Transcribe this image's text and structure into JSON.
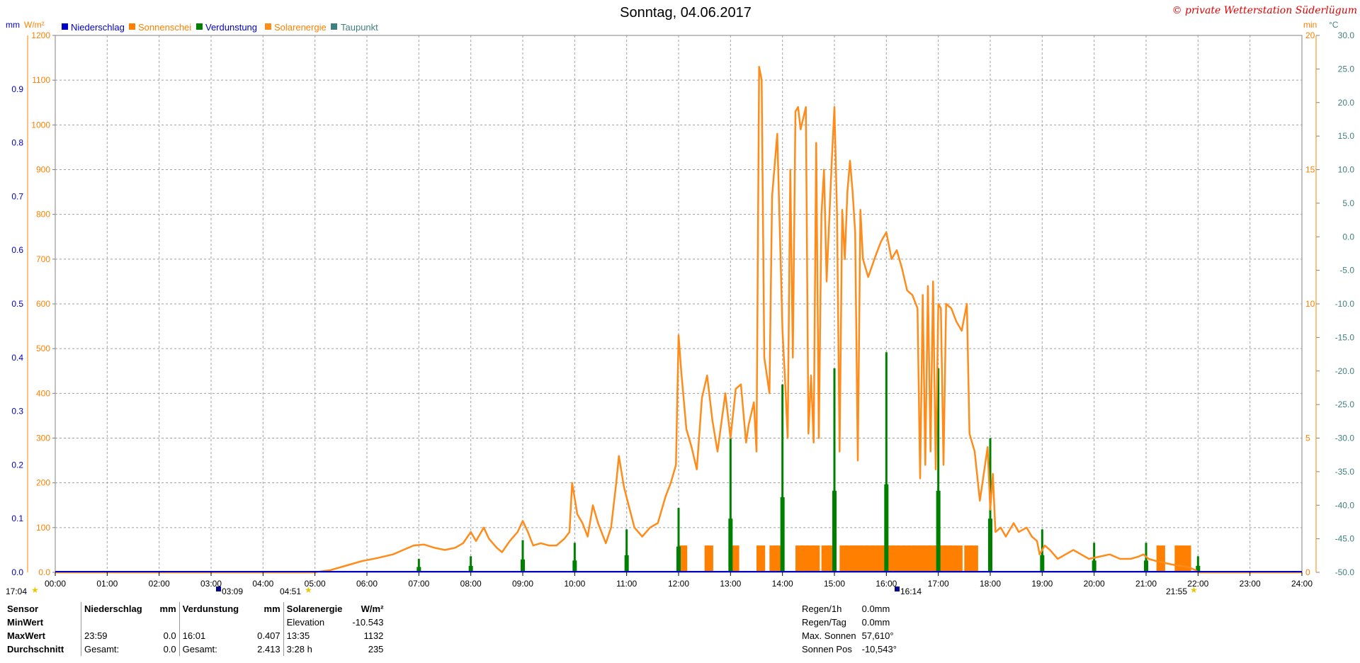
{
  "title": "Sonntag, 04.06.2017",
  "copyright": "© private Wetterstation Süderlügum",
  "legend": [
    {
      "label": "Niederschlag",
      "color": "#0000c8"
    },
    {
      "label": "Sonnenschei",
      "color": "#ff8000"
    },
    {
      "label": "Verdunstung",
      "color": "#008000"
    },
    {
      "label": "Solarenergie",
      "color": "#ff8c1a"
    },
    {
      "label": "Taupunkt",
      "color": "#408080"
    }
  ],
  "axis_headers": {
    "left_mm": "mm",
    "left_wm2": "W/m²",
    "right_min": "min",
    "right_c": "°C"
  },
  "markers": {
    "moonrise_left": "17:04",
    "sunrise_marker": "03:09",
    "sunrise_time": "04:51",
    "moonset_marker": "16:14",
    "sunset_time": "21:55"
  },
  "stats": {
    "headers": {
      "sensor": "Sensor",
      "niederschlag": "Niederschlag",
      "mm": "mm",
      "verdunstung": "Verdunstung",
      "mm2": "mm",
      "solar": "Solarenergie",
      "wm2": "W/m²"
    },
    "rows": [
      {
        "label": "MinWert",
        "c1": "",
        "c2": "",
        "c3": "",
        "c4": "",
        "c5": "Elevation",
        "c6": "-10.543"
      },
      {
        "label": "MaxWert",
        "c1": "23:59",
        "c2": "0.0",
        "c3": "16:01",
        "c4": "0.407",
        "c5": "13:35",
        "c6": "1132"
      },
      {
        "label": "Durchschnitt",
        "c1": "Gesamt:",
        "c2": "0.0",
        "c3": "Gesamt:",
        "c4": "2.413",
        "c5": "3:28 h",
        "c6": "235"
      }
    ],
    "right": [
      {
        "label": "Regen/1h",
        "value": "0.0mm"
      },
      {
        "label": "Regen/Tag",
        "value": "0.0mm"
      },
      {
        "label": "Max. Sonnen",
        "value": "57,610°"
      },
      {
        "label": "Sonnen Pos",
        "value": "-10,543°"
      }
    ]
  },
  "chart_data": {
    "type": "line",
    "x_axis": {
      "label": "",
      "min": 0,
      "max": 24,
      "ticks": [
        "00:00",
        "01:00",
        "02:00",
        "03:00",
        "04:00",
        "05:00",
        "06:00",
        "07:00",
        "08:00",
        "09:00",
        "10:00",
        "11:00",
        "12:00",
        "13:00",
        "14:00",
        "15:00",
        "16:00",
        "17:00",
        "18:00",
        "19:00",
        "20:00",
        "21:00",
        "22:00",
        "23:00",
        "24:00"
      ]
    },
    "axes": {
      "mm": {
        "min": 0,
        "max": 1.0,
        "ticks": [
          "0.0",
          "0.1",
          "0.2",
          "0.3",
          "0.4",
          "0.5",
          "0.6",
          "0.7",
          "0.8",
          "0.9"
        ],
        "color": "#0000c8"
      },
      "wm2": {
        "min": 0,
        "max": 1200,
        "ticks": [
          "0.0",
          "100",
          "200",
          "300",
          "400",
          "500",
          "600",
          "700",
          "800",
          "900",
          "1000",
          "1100",
          "1200"
        ],
        "color": "#ff8000"
      },
      "min": {
        "min": 0,
        "max": 20,
        "ticks": [
          "0",
          "5",
          "10",
          "15",
          "20"
        ],
        "color": "#ff8000"
      },
      "celsius": {
        "min": -50,
        "max": 30,
        "ticks": [
          "-50.0",
          "-45.0",
          "-40.0",
          "-35.0",
          "-30.0",
          "-25.0",
          "-20.0",
          "-15.0",
          "-10.0",
          "-5.0",
          "0.0",
          "5.0",
          "10.0",
          "15.0",
          "20.0",
          "25.0",
          "30.0"
        ],
        "color": "#408080"
      }
    },
    "grid": true,
    "series": [
      {
        "name": "Solarenergie",
        "axis": "wm2",
        "color": "#ff8c1a",
        "points": [
          [
            0,
            0
          ],
          [
            5.0,
            0
          ],
          [
            5.3,
            5
          ],
          [
            5.6,
            15
          ],
          [
            5.9,
            25
          ],
          [
            6.2,
            32
          ],
          [
            6.5,
            40
          ],
          [
            6.7,
            50
          ],
          [
            6.9,
            60
          ],
          [
            7.1,
            62
          ],
          [
            7.3,
            55
          ],
          [
            7.5,
            50
          ],
          [
            7.7,
            55
          ],
          [
            7.85,
            65
          ],
          [
            8.0,
            90
          ],
          [
            8.1,
            70
          ],
          [
            8.25,
            100
          ],
          [
            8.35,
            75
          ],
          [
            8.5,
            55
          ],
          [
            8.6,
            45
          ],
          [
            8.75,
            70
          ],
          [
            8.9,
            90
          ],
          [
            9.0,
            115
          ],
          [
            9.1,
            90
          ],
          [
            9.2,
            60
          ],
          [
            9.35,
            65
          ],
          [
            9.5,
            60
          ],
          [
            9.65,
            60
          ],
          [
            9.8,
            75
          ],
          [
            9.9,
            90
          ],
          [
            9.95,
            200
          ],
          [
            10.05,
            130
          ],
          [
            10.15,
            110
          ],
          [
            10.25,
            80
          ],
          [
            10.35,
            150
          ],
          [
            10.45,
            110
          ],
          [
            10.6,
            65
          ],
          [
            10.7,
            100
          ],
          [
            10.8,
            200
          ],
          [
            10.85,
            260
          ],
          [
            10.95,
            190
          ],
          [
            11.05,
            145
          ],
          [
            11.15,
            100
          ],
          [
            11.3,
            80
          ],
          [
            11.45,
            100
          ],
          [
            11.6,
            110
          ],
          [
            11.75,
            170
          ],
          [
            11.85,
            200
          ],
          [
            11.95,
            240
          ],
          [
            12.0,
            530
          ],
          [
            12.05,
            450
          ],
          [
            12.15,
            320
          ],
          [
            12.25,
            280
          ],
          [
            12.35,
            230
          ],
          [
            12.45,
            390
          ],
          [
            12.55,
            440
          ],
          [
            12.65,
            340
          ],
          [
            12.75,
            270
          ],
          [
            12.9,
            400
          ],
          [
            13.0,
            300
          ],
          [
            13.1,
            410
          ],
          [
            13.2,
            420
          ],
          [
            13.3,
            290
          ],
          [
            13.35,
            330
          ],
          [
            13.45,
            380
          ],
          [
            13.5,
            270
          ],
          [
            13.55,
            1130
          ],
          [
            13.6,
            1100
          ],
          [
            13.65,
            480
          ],
          [
            13.75,
            400
          ],
          [
            13.8,
            840
          ],
          [
            13.9,
            980
          ],
          [
            14.0,
            540
          ],
          [
            14.05,
            430
          ],
          [
            14.1,
            300
          ],
          [
            14.15,
            900
          ],
          [
            14.2,
            480
          ],
          [
            14.25,
            1030
          ],
          [
            14.3,
            1040
          ],
          [
            14.35,
            990
          ],
          [
            14.45,
            1040
          ],
          [
            14.5,
            310
          ],
          [
            14.55,
            440
          ],
          [
            14.6,
            290
          ],
          [
            14.65,
            960
          ],
          [
            14.7,
            300
          ],
          [
            14.75,
            800
          ],
          [
            14.8,
            900
          ],
          [
            14.85,
            650
          ],
          [
            14.95,
            920
          ],
          [
            15.0,
            1040
          ],
          [
            15.05,
            800
          ],
          [
            15.1,
            270
          ],
          [
            15.15,
            810
          ],
          [
            15.2,
            700
          ],
          [
            15.25,
            850
          ],
          [
            15.3,
            920
          ],
          [
            15.35,
            850
          ],
          [
            15.4,
            760
          ],
          [
            15.45,
            250
          ],
          [
            15.5,
            810
          ],
          [
            15.55,
            700
          ],
          [
            15.65,
            660
          ],
          [
            15.8,
            710
          ],
          [
            15.9,
            740
          ],
          [
            16.0,
            760
          ],
          [
            16.1,
            700
          ],
          [
            16.2,
            720
          ],
          [
            16.3,
            680
          ],
          [
            16.4,
            630
          ],
          [
            16.5,
            620
          ],
          [
            16.6,
            590
          ],
          [
            16.65,
            210
          ],
          [
            16.7,
            620
          ],
          [
            16.75,
            240
          ],
          [
            16.8,
            640
          ],
          [
            16.85,
            270
          ],
          [
            16.9,
            650
          ],
          [
            16.95,
            230
          ],
          [
            17.0,
            600
          ],
          [
            17.05,
            590
          ],
          [
            17.1,
            240
          ],
          [
            17.15,
            600
          ],
          [
            17.25,
            590
          ],
          [
            17.35,
            560
          ],
          [
            17.45,
            540
          ],
          [
            17.55,
            600
          ],
          [
            17.6,
            310
          ],
          [
            17.7,
            270
          ],
          [
            17.8,
            160
          ],
          [
            17.85,
            200
          ],
          [
            17.95,
            280
          ],
          [
            18.0,
            140
          ],
          [
            18.05,
            220
          ],
          [
            18.1,
            90
          ],
          [
            18.2,
            100
          ],
          [
            18.3,
            80
          ],
          [
            18.45,
            110
          ],
          [
            18.55,
            90
          ],
          [
            18.7,
            100
          ],
          [
            18.8,
            80
          ],
          [
            18.9,
            70
          ],
          [
            18.95,
            40
          ],
          [
            19.05,
            60
          ],
          [
            19.15,
            50
          ],
          [
            19.3,
            30
          ],
          [
            19.45,
            40
          ],
          [
            19.6,
            50
          ],
          [
            19.75,
            40
          ],
          [
            19.9,
            30
          ],
          [
            20.1,
            35
          ],
          [
            20.3,
            40
          ],
          [
            20.5,
            30
          ],
          [
            20.7,
            30
          ],
          [
            20.85,
            35
          ],
          [
            20.95,
            40
          ],
          [
            21.05,
            30
          ],
          [
            21.2,
            25
          ],
          [
            21.4,
            20
          ],
          [
            21.6,
            15
          ],
          [
            21.8,
            12
          ],
          [
            21.95,
            5
          ],
          [
            22.0,
            0
          ],
          [
            24,
            0
          ]
        ]
      },
      {
        "name": "Verdunstung",
        "axis": "mm",
        "color": "#008000",
        "type": "bars",
        "bars": [
          [
            7.0,
            0.025
          ],
          [
            8.0,
            0.03
          ],
          [
            9.0,
            0.06
          ],
          [
            10.0,
            0.055
          ],
          [
            11.0,
            0.08
          ],
          [
            12.0,
            0.12
          ],
          [
            13.0,
            0.25
          ],
          [
            14.0,
            0.35
          ],
          [
            15.0,
            0.38
          ],
          [
            16.0,
            0.41
          ],
          [
            17.0,
            0.38
          ],
          [
            18.0,
            0.25
          ],
          [
            19.0,
            0.08
          ],
          [
            20.0,
            0.055
          ],
          [
            21.0,
            0.055
          ],
          [
            22.0,
            0.03
          ]
        ]
      },
      {
        "name": "Sonnenschein",
        "axis": "min",
        "color": "#ff8000",
        "type": "bars",
        "bars": [
          [
            12.0,
            1
          ],
          [
            12.5,
            1
          ],
          [
            13.0,
            1
          ],
          [
            13.5,
            1
          ],
          [
            13.75,
            1
          ],
          [
            13.85,
            1
          ],
          [
            14.25,
            1
          ],
          [
            14.35,
            1
          ],
          [
            14.45,
            1
          ],
          [
            14.55,
            1
          ],
          [
            14.75,
            1
          ],
          [
            14.85,
            1
          ],
          [
            15.1,
            1
          ],
          [
            15.2,
            1
          ],
          [
            15.3,
            1
          ],
          [
            15.4,
            1
          ],
          [
            15.5,
            1
          ],
          [
            15.6,
            1
          ],
          [
            15.7,
            1
          ],
          [
            15.8,
            1
          ],
          [
            15.9,
            1
          ],
          [
            16.0,
            1
          ],
          [
            16.1,
            1
          ],
          [
            16.2,
            1
          ],
          [
            16.3,
            1
          ],
          [
            16.4,
            1
          ],
          [
            16.5,
            1
          ],
          [
            16.6,
            1
          ],
          [
            16.7,
            1
          ],
          [
            16.8,
            1
          ],
          [
            16.9,
            1
          ],
          [
            17.0,
            1
          ],
          [
            17.1,
            1
          ],
          [
            17.2,
            1
          ],
          [
            17.3,
            1
          ],
          [
            17.5,
            1
          ],
          [
            17.6,
            1
          ],
          [
            21.2,
            1
          ],
          [
            21.55,
            1
          ],
          [
            21.7,
            1
          ]
        ]
      },
      {
        "name": "Niederschlag",
        "axis": "mm",
        "color": "#0000c8",
        "points": [
          [
            0,
            0
          ],
          [
            24,
            0
          ]
        ]
      }
    ]
  }
}
